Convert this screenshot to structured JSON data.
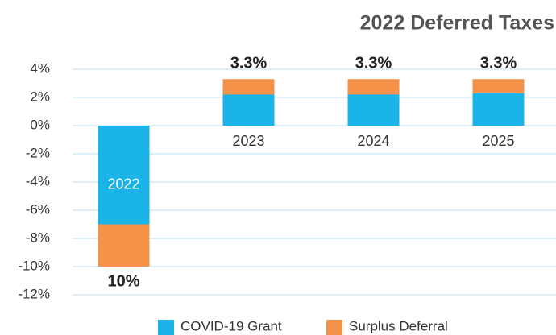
{
  "chart_data": {
    "type": "stacked_bar",
    "title": "2022 Deferred Taxes",
    "categories": [
      "2022",
      "2023",
      "2024",
      "2025"
    ],
    "series": [
      {
        "name": "COVID-19 Grant",
        "color": "#1ab4e8",
        "values": [
          -7,
          2.2,
          2.2,
          2.3
        ]
      },
      {
        "name": "Surplus Deferral",
        "color": "#f5924a",
        "values": [
          -3,
          1.1,
          1.1,
          1.0
        ]
      }
    ],
    "annotations": [
      "10%",
      "3.3%",
      "3.3%",
      "3.3%"
    ],
    "ylim": [
      -12,
      4
    ],
    "yticks": [
      {
        "value": 4,
        "label": "4%"
      },
      {
        "value": 2,
        "label": "2%"
      },
      {
        "value": 0,
        "label": "0%"
      },
      {
        "value": -2,
        "label": "-2%"
      },
      {
        "value": -4,
        "label": "-4%"
      },
      {
        "value": -6,
        "label": "-6%"
      },
      {
        "value": -8,
        "label": "-8%"
      },
      {
        "value": -10,
        "label": "-10%"
      },
      {
        "value": -12,
        "label": "-12%"
      }
    ],
    "grid": true,
    "legend": "bottom"
  }
}
